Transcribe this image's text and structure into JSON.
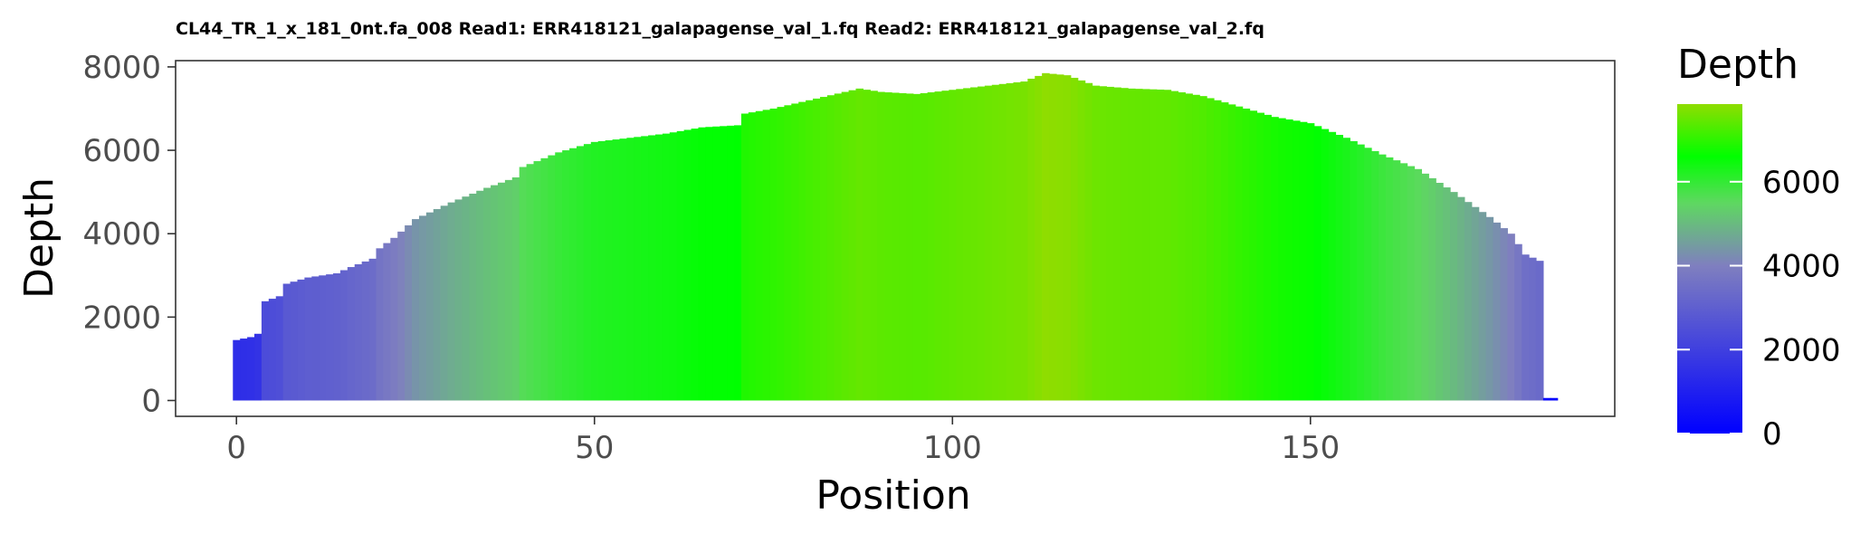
{
  "chart_data": {
    "type": "bar",
    "title": "CL44_TR_1_x_181_0nt.fa_008 Read1: ERR418121_galapagense_val_1.fq Read2: ERR418121_galapagense_val_2.fq",
    "xlabel": "Position",
    "ylabel": "Depth",
    "xlim": [
      -8.5,
      192.5
    ],
    "ylim": [
      -380,
      8150
    ],
    "x_ticks": [
      0,
      50,
      100,
      150
    ],
    "y_ticks": [
      0,
      2000,
      4000,
      6000,
      8000
    ],
    "grid": false,
    "legend": {
      "title": "Depth",
      "placement": "right",
      "ticks": [
        0,
        2000,
        4000,
        6000
      ],
      "range": [
        0,
        7850
      ],
      "color_stops": [
        {
          "value": 0,
          "color": "#0000FF"
        },
        {
          "value": 4000,
          "color": "#7F7FBF"
        },
        {
          "value": 5500,
          "color": "#5ED860"
        },
        {
          "value": 6600,
          "color": "#00FF00"
        },
        {
          "value": 7850,
          "color": "#8FDD00"
        }
      ]
    },
    "anchors": [
      [
        0,
        1450
      ],
      [
        2,
        1520
      ],
      [
        3,
        1600
      ],
      [
        4,
        2380
      ],
      [
        6,
        2500
      ],
      [
        7,
        2800
      ],
      [
        10,
        2950
      ],
      [
        14,
        3050
      ],
      [
        16,
        3200
      ],
      [
        19,
        3400
      ],
      [
        20,
        3650
      ],
      [
        22,
        3900
      ],
      [
        25,
        4350
      ],
      [
        30,
        4750
      ],
      [
        35,
        5100
      ],
      [
        39,
        5350
      ],
      [
        40,
        5600
      ],
      [
        45,
        5950
      ],
      [
        50,
        6200
      ],
      [
        55,
        6300
      ],
      [
        60,
        6400
      ],
      [
        65,
        6550
      ],
      [
        70,
        6600
      ],
      [
        71,
        6880
      ],
      [
        75,
        7000
      ],
      [
        80,
        7200
      ],
      [
        85,
        7400
      ],
      [
        87,
        7480
      ],
      [
        90,
        7400
      ],
      [
        95,
        7350
      ],
      [
        100,
        7450
      ],
      [
        105,
        7550
      ],
      [
        110,
        7650
      ],
      [
        113,
        7850
      ],
      [
        116,
        7800
      ],
      [
        120,
        7550
      ],
      [
        125,
        7480
      ],
      [
        130,
        7450
      ],
      [
        135,
        7300
      ],
      [
        140,
        7050
      ],
      [
        145,
        6800
      ],
      [
        150,
        6650
      ],
      [
        155,
        6300
      ],
      [
        160,
        5900
      ],
      [
        165,
        5550
      ],
      [
        170,
        5000
      ],
      [
        175,
        4400
      ],
      [
        178,
        4000
      ],
      [
        180,
        3500
      ],
      [
        182,
        3350
      ]
    ],
    "tail": [
      [
        183,
        60
      ],
      [
        184,
        60
      ]
    ]
  }
}
